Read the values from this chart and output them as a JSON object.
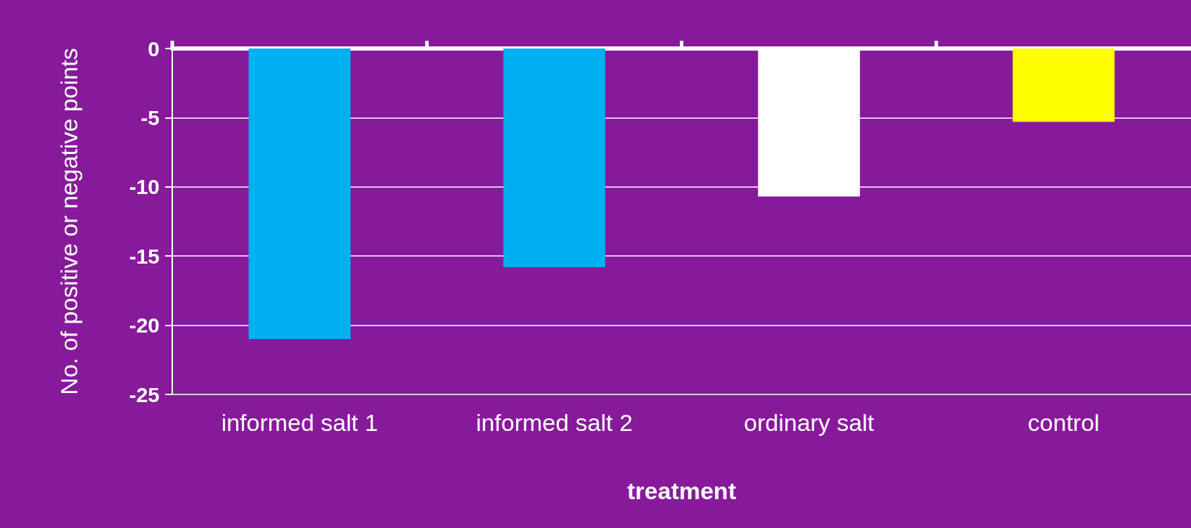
{
  "chart_data": {
    "type": "bar",
    "xlabel": "treatment",
    "ylabel": "No. of positive or negative points",
    "categories": [
      "informed salt 1",
      "informed salt 2",
      "ordinary salt",
      "control"
    ],
    "values": [
      -21,
      -15.8,
      -10.7,
      -5.3
    ],
    "colors": [
      "#00b0f0",
      "#00b0f0",
      "#ffffff",
      "#ffff00"
    ],
    "ylim": [
      -25,
      0
    ],
    "yticks": [
      -25,
      -20,
      -15,
      -10,
      -5,
      0
    ],
    "grid": "y"
  }
}
